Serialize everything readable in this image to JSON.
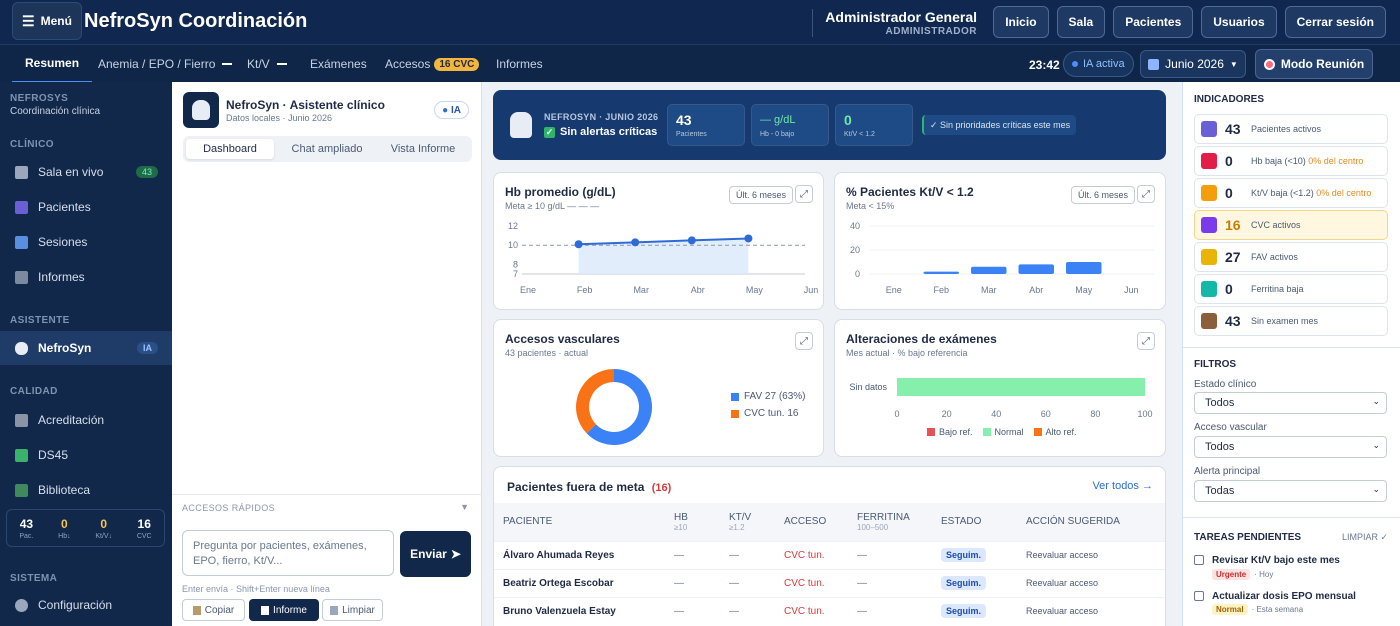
{
  "header": {
    "menu_label": "Menú",
    "title": "NefroSyn Coordinación",
    "admin_name": "Administrador General",
    "admin_role": "ADMINISTRADOR",
    "nav": [
      "Inicio",
      "Sala",
      "Pacientes",
      "Usuarios",
      "Cerrar sesión"
    ]
  },
  "tabs": [
    {
      "label": "Resumen"
    },
    {
      "label": "Anemia / EPO / Fierro"
    },
    {
      "label": "Kt/V"
    },
    {
      "label": "Exámenes"
    },
    {
      "label": "Accesos",
      "badge": "16 CVC"
    },
    {
      "label": "Informes"
    }
  ],
  "toolbar": {
    "time": "23:42",
    "ia_status": "IA activa",
    "month": "Junio 2026",
    "meeting": "Modo Reunión"
  },
  "sidebar": {
    "app_name": "NEFROSYS",
    "app_sub": "Coordinación clínica",
    "sec_clinico": "CLÍNICO",
    "sec_asistente": "ASISTENTE",
    "sec_calidad": "CALIDAD",
    "sec_sistema": "SISTEMA",
    "items": [
      {
        "label": "Sala en vivo",
        "badge": "43"
      },
      {
        "label": "Pacientes"
      },
      {
        "label": "Sesiones"
      },
      {
        "label": "Informes"
      },
      {
        "label": "NefroSyn",
        "badge": "IA"
      },
      {
        "label": "Acreditación"
      },
      {
        "label": "DS45"
      },
      {
        "label": "Biblioteca"
      },
      {
        "label": "Configuración"
      }
    ],
    "stats": [
      {
        "n": "43",
        "l": "Pac."
      },
      {
        "n": "0",
        "l": "Hb↓"
      },
      {
        "n": "0",
        "l": "Kt/V↓"
      },
      {
        "n": "16",
        "l": "CVC"
      }
    ]
  },
  "assistant": {
    "title": "NefroSyn · Asistente clínico",
    "subtitle": "Datos locales · Junio 2026",
    "ia_badge": "IA",
    "tabs": [
      "Dashboard",
      "Chat ampliado",
      "Vista Informe"
    ],
    "quick_label": "ACCESOS RÁPIDOS",
    "placeholder": "Pregunta por pacientes, exámenes, EPO, fierro, Kt/V...",
    "send": "Enviar",
    "hint": "Enter envía · Shift+Enter nueva línea",
    "actions": [
      "Copiar",
      "Informe",
      "Limpiar"
    ]
  },
  "banner": {
    "kicker": "NEFROSYN · JUNIO 2026",
    "status": "Sin alertas críticas",
    "kpis": [
      {
        "value": "43",
        "label": "Pacientes"
      },
      {
        "value": "— g/dL",
        "label": "Hb - 0 bajo"
      },
      {
        "value": "0",
        "label": "Kt/V < 1.2"
      }
    ],
    "note": "✓ Sin prioridades críticas este mes"
  },
  "cards": {
    "hb": {
      "title": "Hb promedio (g/dL)",
      "sub": "Meta ≥ 10 g/dL — — —",
      "range": "Últ. 6 meses"
    },
    "ktv": {
      "title": "% Pacientes Kt/V < 1.2",
      "sub": "Meta < 15%",
      "range": "Últ. 6 meses"
    },
    "access": {
      "title": "Accesos vasculares",
      "sub": "43 pacientes · actual",
      "legend": [
        {
          "label": "FAV  27 (63%)",
          "color": "#3b82f6"
        },
        {
          "label": "CVC tun.  16",
          "color": "#f97316"
        }
      ]
    },
    "exams": {
      "title": "Alteraciones de exámenes",
      "sub": "Mes actual · % bajo referencia",
      "legend": [
        {
          "label": "Bajo ref.",
          "color": "#e25555"
        },
        {
          "label": "Normal",
          "color": "#86efac"
        },
        {
          "label": "Alto ref.",
          "color": "#f97316"
        }
      ]
    }
  },
  "chart_data": [
    {
      "type": "area",
      "title": "Hb promedio (g/dL)",
      "x": [
        "Ene",
        "Feb",
        "Mar",
        "Abr",
        "May",
        "Jun"
      ],
      "series": [
        {
          "values": [
            null,
            10.1,
            10.3,
            10.5,
            10.7,
            null
          ]
        }
      ],
      "ylim": [
        7,
        12
      ],
      "yticks": [
        7,
        8,
        10,
        12
      ],
      "target": 10,
      "color": "#2e6bd6"
    },
    {
      "type": "bar",
      "title": "% Pacientes Kt/V < 1.2",
      "categories": [
        "Ene",
        "Feb",
        "Mar",
        "Abr",
        "May",
        "Jun"
      ],
      "values": [
        0,
        2,
        6,
        8,
        10,
        0
      ],
      "ylim": [
        0,
        40
      ],
      "yticks": [
        0,
        20,
        40
      ],
      "color": "#3b82f6"
    },
    {
      "type": "pie",
      "title": "Accesos vasculares",
      "categories": [
        "FAV",
        "CVC tun."
      ],
      "values": [
        27,
        16
      ],
      "colors": [
        "#3b82f6",
        "#f97316"
      ]
    },
    {
      "type": "bar",
      "title": "Alteraciones de exámenes",
      "categories": [
        "Sin datos"
      ],
      "values": [
        100
      ],
      "xlim": [
        0,
        100
      ],
      "xticks": [
        0,
        20,
        40,
        60,
        80,
        100
      ],
      "color": "#86efac"
    }
  ],
  "patients": {
    "title": "Pacientes fuera de meta",
    "count": "(16)",
    "see_all": "Ver todos →",
    "cols": [
      {
        "h": "PACIENTE",
        "s": ""
      },
      {
        "h": "HB",
        "s": "≥10"
      },
      {
        "h": "KT/V",
        "s": "≥1.2"
      },
      {
        "h": "ACCESO",
        "s": ""
      },
      {
        "h": "FERRITINA",
        "s": "100–500"
      },
      {
        "h": "ESTADO",
        "s": ""
      },
      {
        "h": "ACCIÓN SUGERIDA",
        "s": ""
      }
    ],
    "rows": [
      {
        "name": "Álvaro Ahumada Reyes",
        "hb": "—",
        "ktv": "—",
        "acc": "CVC tun.",
        "fer": "—",
        "est": "Seguim.",
        "act": "Reevaluar acceso"
      },
      {
        "name": "Beatriz Ortega Escobar",
        "hb": "—",
        "ktv": "—",
        "acc": "CVC tun.",
        "fer": "—",
        "est": "Seguim.",
        "act": "Reevaluar acceso"
      },
      {
        "name": "Bruno Valenzuela Estay",
        "hb": "—",
        "ktv": "—",
        "acc": "CVC tun.",
        "fer": "—",
        "est": "Seguim.",
        "act": "Reevaluar acceso"
      }
    ]
  },
  "indicators": {
    "title": "INDICADORES",
    "items": [
      {
        "n": "43",
        "l": "Pacientes activos",
        "o": "",
        "icon": "people-icon",
        "color": "#6b5fd6"
      },
      {
        "n": "0",
        "l": "Hb baja (<10)",
        "o": "0% del centro",
        "icon": "drop-icon",
        "color": "#e11d48"
      },
      {
        "n": "0",
        "l": "Kt/V baja (<1.2)",
        "o": "0% del centro",
        "icon": "chart-icon",
        "color": "#f59e0b"
      },
      {
        "n": "16",
        "l": "CVC activos",
        "o": "",
        "icon": "catheter-icon",
        "color": "#7c3aed"
      },
      {
        "n": "27",
        "l": "FAV activos",
        "o": "",
        "icon": "arm-icon",
        "color": "#eab308"
      },
      {
        "n": "0",
        "l": "Ferritina baja",
        "o": "",
        "icon": "bed-icon",
        "color": "#14b8a6"
      },
      {
        "n": "43",
        "l": "Sin examen mes",
        "o": "",
        "icon": "clipboard-icon",
        "color": "#8b5e3c"
      }
    ]
  },
  "filters": {
    "title": "FILTROS",
    "items": [
      {
        "label": "Estado clínico",
        "value": "Todos"
      },
      {
        "label": "Acceso vascular",
        "value": "Todos"
      },
      {
        "label": "Alerta principal",
        "value": "Todas"
      }
    ]
  },
  "tasks": {
    "title": "TAREAS PENDIENTES",
    "clear": "LIMPIAR ✓",
    "items": [
      {
        "label": "Revisar Kt/V bajo este mes",
        "tag": "Urgente",
        "when": "· Hoy"
      },
      {
        "label": "Actualizar dosis EPO mensual",
        "tag": "Normal",
        "when": "· Esta semana"
      }
    ]
  }
}
